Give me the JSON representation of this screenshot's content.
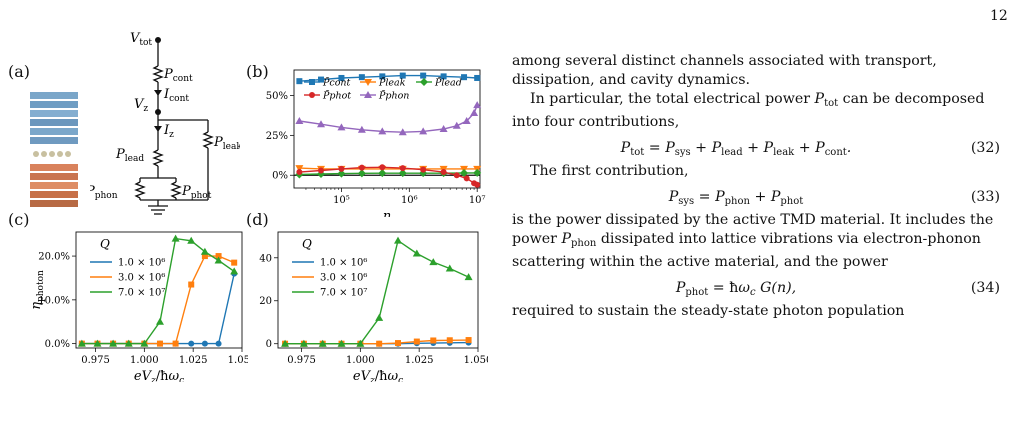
{
  "page_number": "12",
  "panel_labels": {
    "a": "(a)",
    "b": "(b)",
    "c": "(c)",
    "d": "(d)"
  },
  "circuit": {
    "v_tot": "V",
    "v_tot_sub": "tot",
    "p_cont": "P",
    "p_cont_sub": "cont",
    "i_cont": "I",
    "i_cont_sub": "cont",
    "v_z": "V",
    "v_z_sub": "z",
    "i_z": "I",
    "i_z_sub": "z",
    "p_leak": "P",
    "p_leak_sub": "leak",
    "p_lead": "P",
    "p_lead_sub": "lead",
    "p_phon": "P",
    "p_phon_sub": "phon",
    "p_phot": "P",
    "p_phot_sub": "phot"
  },
  "text": {
    "para1": "among several distinct channels associated with transport, dissipation, and cavity dynamics.",
    "para2": "In particular, the total electrical power",
    "para2b": "can be decomposed into four contributions,",
    "eq32": "P_tot = P_sys + P_lead + P_leak + P_cont.",
    "eq32_num": "(32)",
    "para3": "The first contribution,",
    "eq33": "P_sys = P_phon + P_phot",
    "eq33_num": "(33)",
    "para4a": "is the power dissipated by the active TMD material. It includes the power",
    "para4b": "dissipated into lattice vibrations via electron-phonon scattering within the active material, and the power",
    "eq34": "P_phot = ħω_c G(n),",
    "eq34_num": "(34)",
    "para5": "required to sustain the steady-state photon population"
  },
  "chart_data": [
    {
      "id": "b",
      "type": "line",
      "xscale": "log",
      "xlabel": "n",
      "xlim": [
        20000,
        11000000
      ],
      "ylim": [
        -0.08,
        0.66
      ],
      "xticks": [
        100000,
        1000000,
        10000000
      ],
      "xtick_labels": [
        "10⁵",
        "10⁶",
        "10⁷"
      ],
      "yticks": [
        0,
        0.25,
        0.5
      ],
      "ytick_labels": [
        "0%",
        "25%",
        "50%"
      ],
      "series": [
        {
          "name": "P̃cont",
          "color": "#1f77b4",
          "marker": "square",
          "x": [
            24000,
            50000,
            100000,
            200000,
            400000,
            800000,
            1600000,
            3200000,
            6400000,
            10000000
          ],
          "y": [
            0.59,
            0.6,
            0.61,
            0.615,
            0.62,
            0.625,
            0.625,
            0.62,
            0.615,
            0.61
          ]
        },
        {
          "name": "P̃leak",
          "color": "#ff7f0e",
          "marker": "triangle-down",
          "x": [
            24000,
            50000,
            100000,
            200000,
            400000,
            800000,
            1600000,
            3200000,
            6400000,
            10000000
          ],
          "y": [
            0.045,
            0.04,
            0.04,
            0.04,
            0.04,
            0.04,
            0.04,
            0.04,
            0.04,
            0.04
          ]
        },
        {
          "name": "P̃lead",
          "color": "#2ca02c",
          "marker": "diamond",
          "x": [
            24000,
            50000,
            100000,
            200000,
            400000,
            800000,
            1600000,
            3200000,
            6400000,
            10000000
          ],
          "y": [
            0.005,
            0.008,
            0.01,
            0.012,
            0.013,
            0.013,
            0.013,
            0.013,
            0.014,
            0.015
          ]
        },
        {
          "name": "P̃phot",
          "color": "#d62728",
          "marker": "circle",
          "x": [
            24000,
            50000,
            100000,
            200000,
            400000,
            800000,
            1600000,
            3200000,
            5000000,
            7000000,
            9000000,
            10000000
          ],
          "y": [
            0.02,
            0.03,
            0.04,
            0.048,
            0.05,
            0.045,
            0.035,
            0.02,
            0.0,
            -0.02,
            -0.05,
            -0.06
          ]
        },
        {
          "name": "P̃phon",
          "color": "#9467bd",
          "marker": "triangle-up",
          "x": [
            24000,
            50000,
            100000,
            200000,
            400000,
            800000,
            1600000,
            3200000,
            5000000,
            7000000,
            9000000,
            10000000
          ],
          "y": [
            0.34,
            0.32,
            0.3,
            0.285,
            0.275,
            0.27,
            0.275,
            0.29,
            0.31,
            0.34,
            0.39,
            0.44
          ]
        }
      ]
    },
    {
      "id": "c",
      "type": "line",
      "xlabel": "eV_z/ħω_c",
      "ylabel": "η_photon",
      "legend_title": "Q",
      "xlim": [
        0.965,
        1.05
      ],
      "ylim": [
        -0.01,
        0.255
      ],
      "xticks": [
        0.975,
        1.0,
        1.025,
        1.05
      ],
      "xtick_labels": [
        "0.975",
        "1.000",
        "1.025",
        "1.050"
      ],
      "yticks": [
        0,
        0.1,
        0.2
      ],
      "ytick_labels": [
        "0.0%",
        "10.0%",
        "20.0%"
      ],
      "series": [
        {
          "name": "1.0 × 10⁶",
          "color": "#1f77b4",
          "marker": "circle",
          "x": [
            0.968,
            0.976,
            0.984,
            0.992,
            1.0,
            1.008,
            1.016,
            1.024,
            1.031,
            1.038,
            1.046
          ],
          "y": [
            0,
            0,
            0,
            0,
            0,
            0,
            0,
            0,
            0,
            0,
            0.16
          ]
        },
        {
          "name": "3.0 × 10⁶",
          "color": "#ff7f0e",
          "marker": "square",
          "x": [
            0.968,
            0.976,
            0.984,
            0.992,
            1.0,
            1.008,
            1.016,
            1.024,
            1.031,
            1.038,
            1.046
          ],
          "y": [
            0,
            0,
            0,
            0,
            0,
            0,
            0.0,
            0.135,
            0.2,
            0.2,
            0.185
          ]
        },
        {
          "name": "7.0 × 10⁷",
          "color": "#2ca02c",
          "marker": "triangle-up",
          "x": [
            0.968,
            0.976,
            0.984,
            0.992,
            1.0,
            1.008,
            1.016,
            1.024,
            1.031,
            1.038,
            1.046
          ],
          "y": [
            0,
            0,
            0,
            0,
            0,
            0.05,
            0.24,
            0.235,
            0.21,
            0.19,
            0.165
          ]
        }
      ]
    },
    {
      "id": "d",
      "type": "line",
      "xlabel": "eV_z/ħω_c",
      "ylabel": "η_field",
      "legend_title": "Q",
      "xlim": [
        0.965,
        1.05
      ],
      "ylim": [
        -2,
        52
      ],
      "xticks": [
        0.975,
        1.0,
        1.025,
        1.05
      ],
      "xtick_labels": [
        "0.975",
        "1.000",
        "1.025",
        "1.050"
      ],
      "yticks": [
        0,
        20,
        40
      ],
      "ytick_labels": [
        "0",
        "20",
        "40"
      ],
      "series": [
        {
          "name": "1.0 × 10⁶",
          "color": "#1f77b4",
          "marker": "circle",
          "x": [
            0.968,
            0.976,
            0.984,
            0.992,
            1.0,
            1.008,
            1.016,
            1.024,
            1.031,
            1.038,
            1.046
          ],
          "y": [
            0,
            0,
            0,
            0,
            0,
            0,
            0,
            0.2,
            0.3,
            0.4,
            0.5
          ]
        },
        {
          "name": "3.0 × 10⁶",
          "color": "#ff7f0e",
          "marker": "square",
          "x": [
            0.968,
            0.976,
            0.984,
            0.992,
            1.0,
            1.008,
            1.016,
            1.024,
            1.031,
            1.038,
            1.046
          ],
          "y": [
            0,
            0,
            0,
            0,
            0,
            0,
            0.3,
            1.0,
            1.5,
            1.6,
            1.7
          ]
        },
        {
          "name": "7.0 × 10⁷",
          "color": "#2ca02c",
          "marker": "triangle-up",
          "x": [
            0.968,
            0.976,
            0.984,
            0.992,
            1.0,
            1.008,
            1.016,
            1.024,
            1.031,
            1.038,
            1.046
          ],
          "y": [
            0,
            0,
            0,
            0,
            0,
            12,
            48,
            42,
            38,
            35,
            31
          ]
        }
      ]
    }
  ]
}
